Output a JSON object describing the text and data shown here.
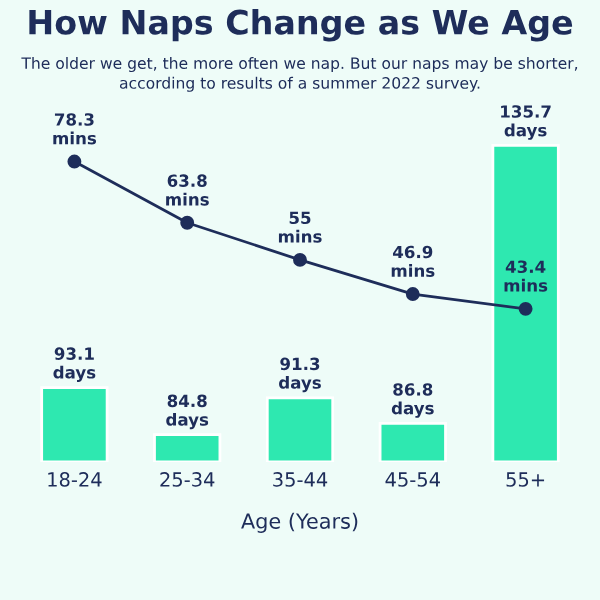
{
  "chart_data": {
    "type": "bar",
    "title": "How Naps Change as We Age",
    "subtitle": "The older we get, the more often we nap. But our naps may be shorter,\naccording to results of a summer 2022 survey.",
    "xlabel": "Age (Years)",
    "categories": [
      "18-24",
      "25-34",
      "35-44",
      "45-54",
      "55+"
    ],
    "series": [
      {
        "color": "#2ee8b0",
        "values": [
          93.1,
          84.8,
          91.3,
          86.8,
          135.7
        ],
        "value_labels": [
          "93.1\ndays",
          "84.8\ndays",
          "91.3\ndays",
          "86.8\ndays",
          "135.7\ndays"
        ]
      },
      {
        "type": "line",
        "axis": "y2",
        "color": "#1e2d5a",
        "values": [
          78.3,
          63.8,
          55,
          46.9,
          43.4
        ],
        "value_labels": [
          "78.3\nmins",
          "63.8\nmins",
          "55\nmins",
          "46.9\nmins",
          "43.4\nmins"
        ]
      }
    ],
    "ylim": [
      80,
      137
    ],
    "tick_labels": "x",
    "marker": "circle",
    "line_style": "solid",
    "grid": false,
    "legend": false
  }
}
